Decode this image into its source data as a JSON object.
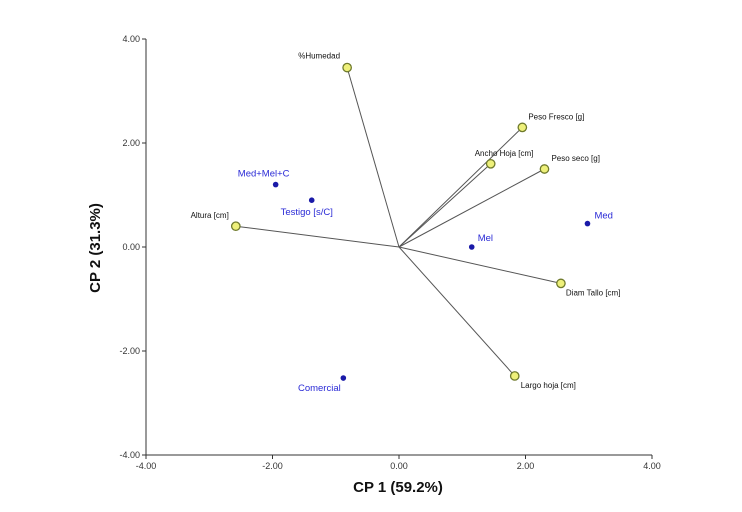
{
  "chart_data": {
    "type": "scatter",
    "subtype": "biplot",
    "title": "",
    "xlabel": "CP 1 (59.2%)",
    "ylabel": "CP 2 (31.3%)",
    "xlim": [
      -4.0,
      4.0
    ],
    "ylim": [
      -4.0,
      4.0
    ],
    "xticks": [
      -4.0,
      -2.0,
      0.0,
      2.0,
      4.0
    ],
    "yticks": [
      -4.0,
      -2.0,
      0.0,
      2.0,
      4.0
    ],
    "xtick_labels": [
      "-4.00",
      "-2.00",
      "0.00",
      "2.00",
      "4.00"
    ],
    "ytick_labels": [
      "-4.00",
      "-2.00",
      "0.00",
      "2.00",
      "4.00"
    ],
    "grid": false,
    "variables": [
      {
        "name": "%Humedad",
        "x": -0.82,
        "y": 3.45
      },
      {
        "name": "Peso Fresco [g]",
        "x": 1.95,
        "y": 2.3
      },
      {
        "name": "Ancho Hoja [cm]",
        "x": 1.45,
        "y": 1.6
      },
      {
        "name": "Peso seco [g]",
        "x": 2.3,
        "y": 1.5
      },
      {
        "name": "Altura [cm]",
        "x": -2.58,
        "y": 0.4
      },
      {
        "name": "Diam Tallo [cm]",
        "x": 2.56,
        "y": -0.7
      },
      {
        "name": "Largo hoja [cm]",
        "x": 1.83,
        "y": -2.48
      }
    ],
    "observations": [
      {
        "name": "Med+Mel+C",
        "x": -1.95,
        "y": 1.2
      },
      {
        "name": "Testigo [s/C]",
        "x": -1.38,
        "y": 0.9
      },
      {
        "name": "Mel",
        "x": 1.15,
        "y": 0.0
      },
      {
        "name": "Med",
        "x": 2.98,
        "y": 0.45
      },
      {
        "name": "Comercial",
        "x": -0.88,
        "y": -2.52
      }
    ],
    "colors": {
      "observation": "#1a1aa8",
      "observation_label": "#2a2ad6",
      "variable_fill": "#eef07a",
      "variable_stroke": "#6f7a2c",
      "vector": "#555555",
      "axis": "#333333"
    }
  }
}
